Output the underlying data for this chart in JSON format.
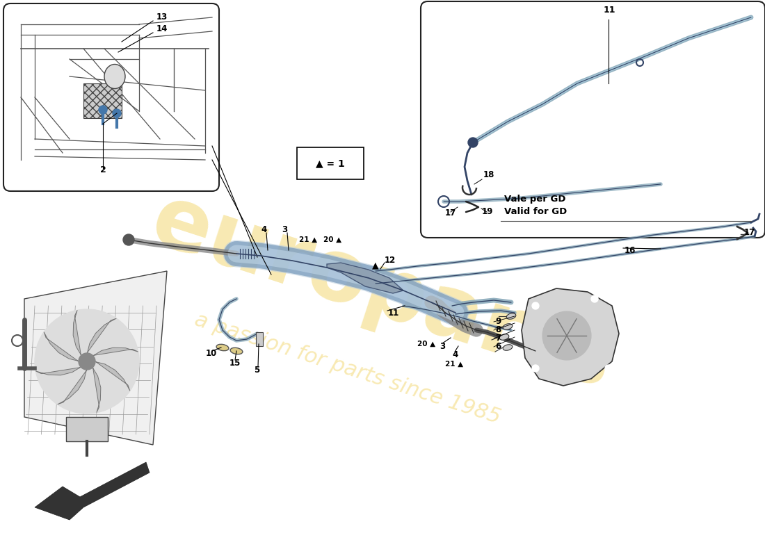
{
  "background_color": "#ffffff",
  "watermark1": "europarts",
  "watermark2": "a passion for parts since 1985",
  "wm_color": "#e8b800",
  "wm_alpha": 0.3,
  "note_text": "▲ = 1",
  "inset2_note1": "Vale per GD",
  "inset2_note2": "Valid for GD"
}
